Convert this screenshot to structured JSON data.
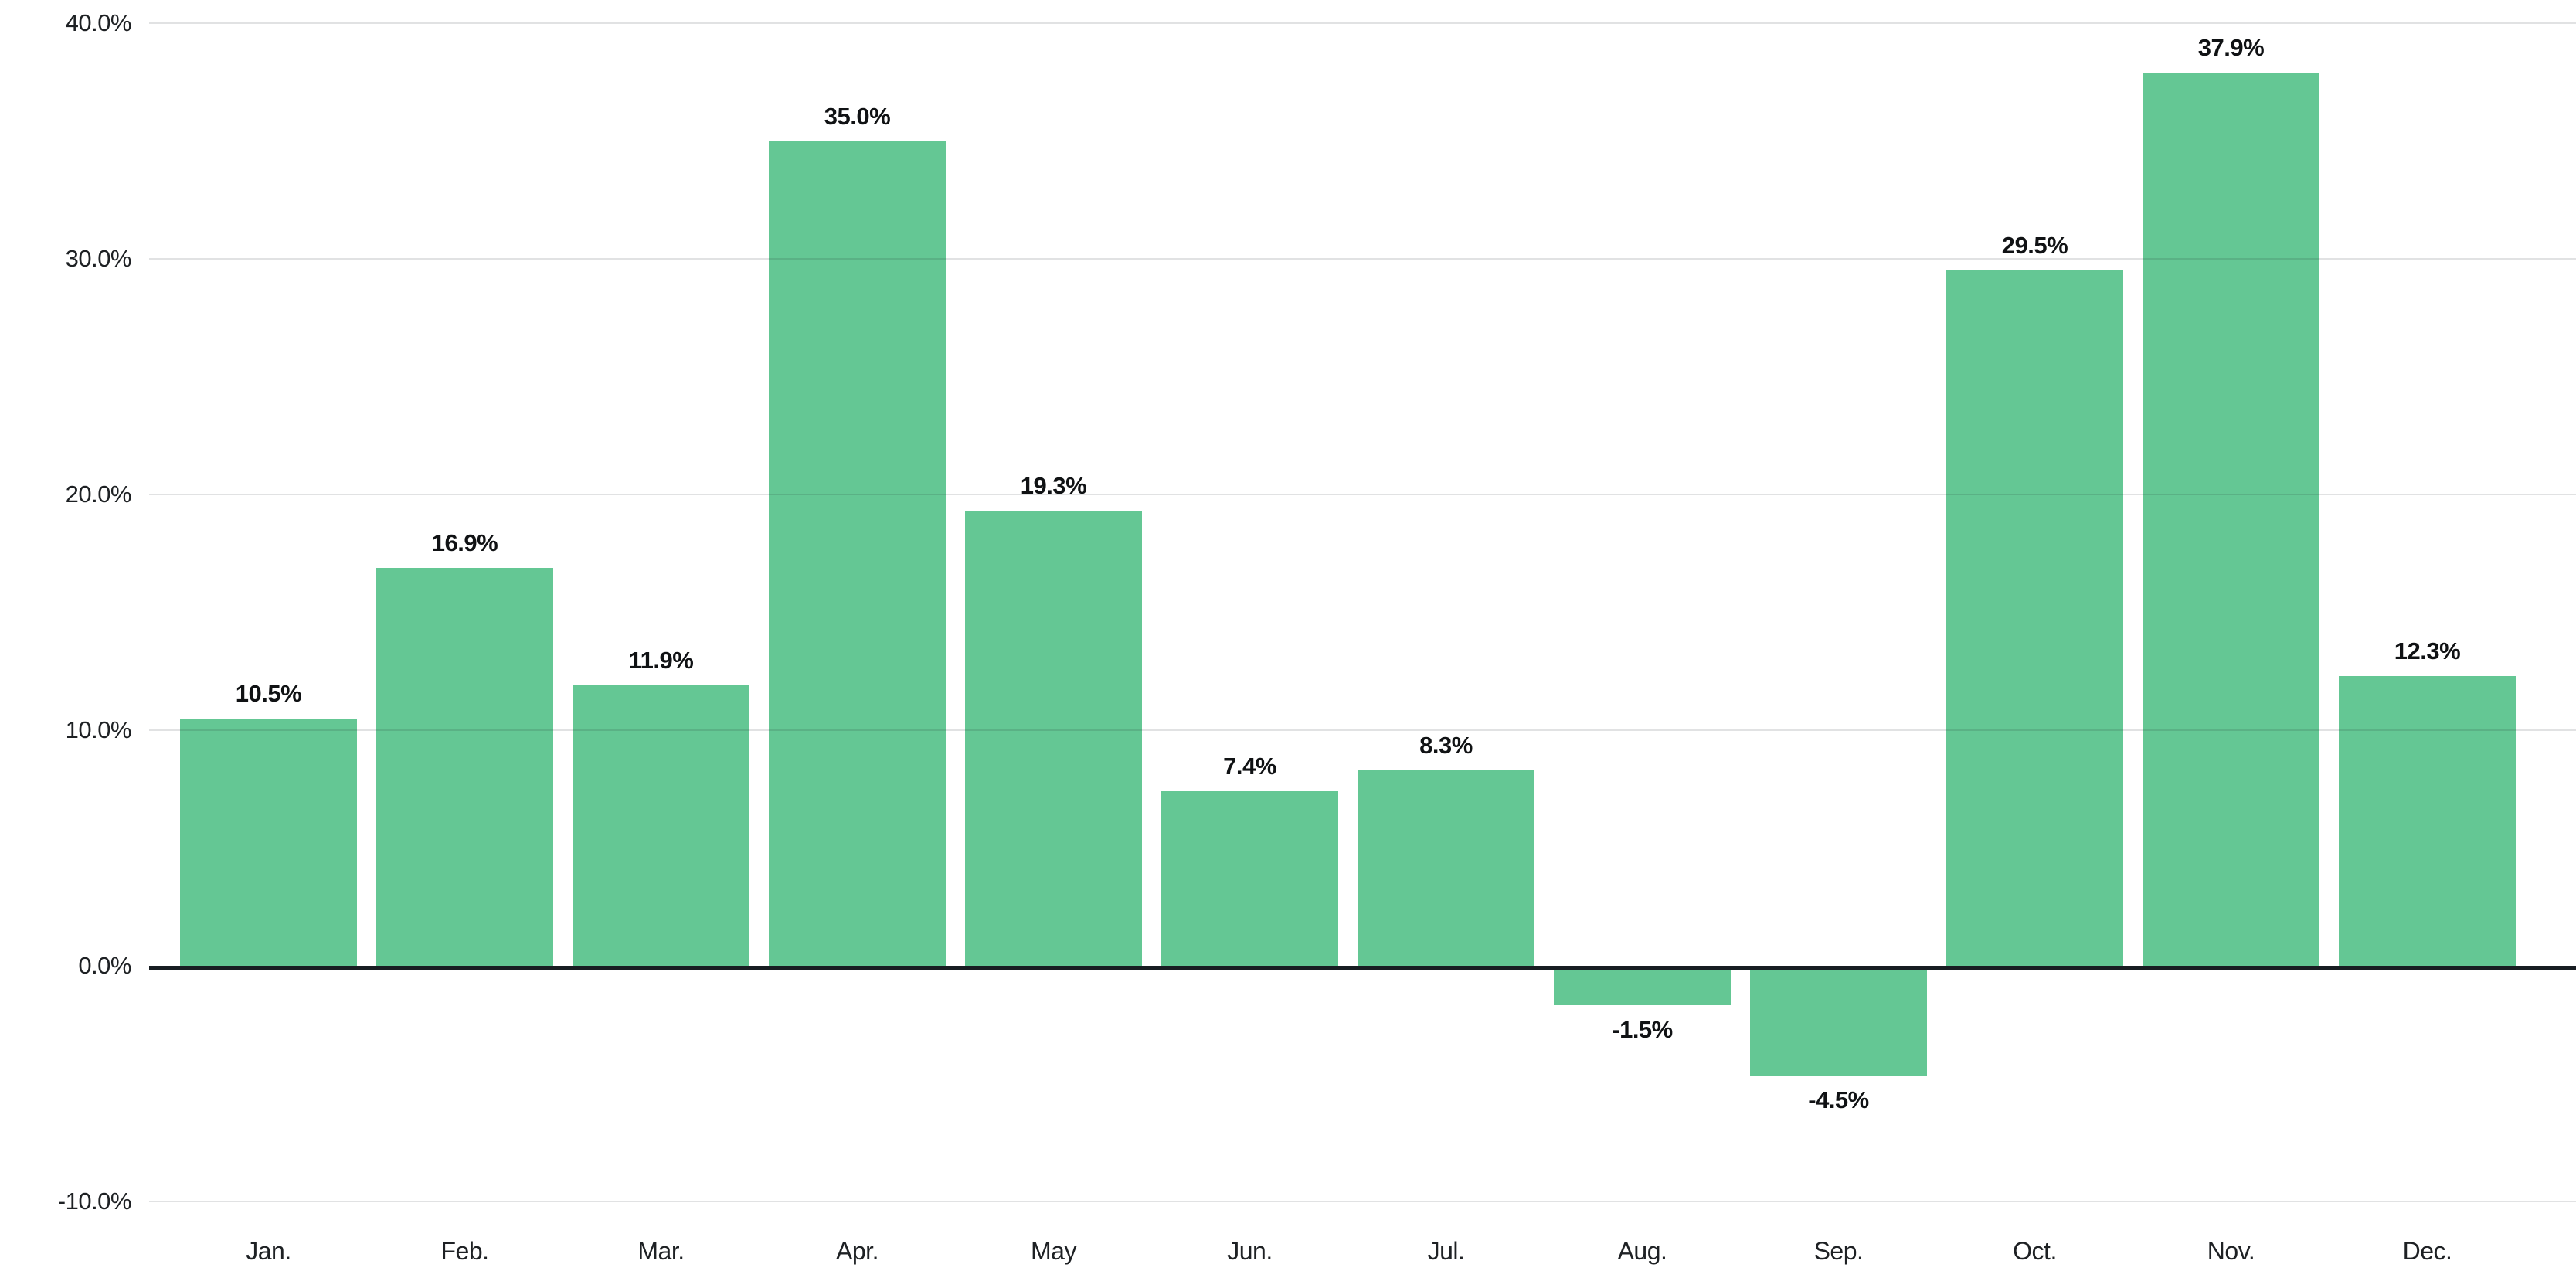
{
  "chart_data": {
    "type": "bar",
    "categories": [
      "Jan.",
      "Feb.",
      "Mar.",
      "Apr.",
      "May",
      "Jun.",
      "Jul.",
      "Aug.",
      "Sep.",
      "Oct.",
      "Nov.",
      "Dec."
    ],
    "values": [
      10.5,
      16.9,
      11.9,
      35.0,
      19.3,
      7.4,
      8.3,
      -1.5,
      -4.5,
      29.5,
      37.9,
      12.3
    ],
    "value_labels": [
      "10.5%",
      "16.9%",
      "11.9%",
      "35.0%",
      "19.3%",
      "7.4%",
      "8.3%",
      "-1.5%",
      "-4.5%",
      "29.5%",
      "37.9%",
      "12.3%"
    ],
    "title": "",
    "xlabel": "",
    "ylabel": "",
    "ylim": [
      -10,
      40
    ],
    "y_ticks": [
      {
        "value": 40,
        "label": "40.0%"
      },
      {
        "value": 30,
        "label": "30.0%"
      },
      {
        "value": 20,
        "label": "20.0%"
      },
      {
        "value": 10,
        "label": "10.0%"
      },
      {
        "value": 0,
        "label": "0.0%"
      },
      {
        "value": -10,
        "label": "-10.0%"
      }
    ],
    "grid": true,
    "legend": null,
    "colors": {
      "bar": "#64c794",
      "gridline": "rgba(25,30,36,0.13)",
      "zero_line": "#181d22",
      "value_label": "#101214",
      "tick_label": "#1e2124"
    }
  }
}
